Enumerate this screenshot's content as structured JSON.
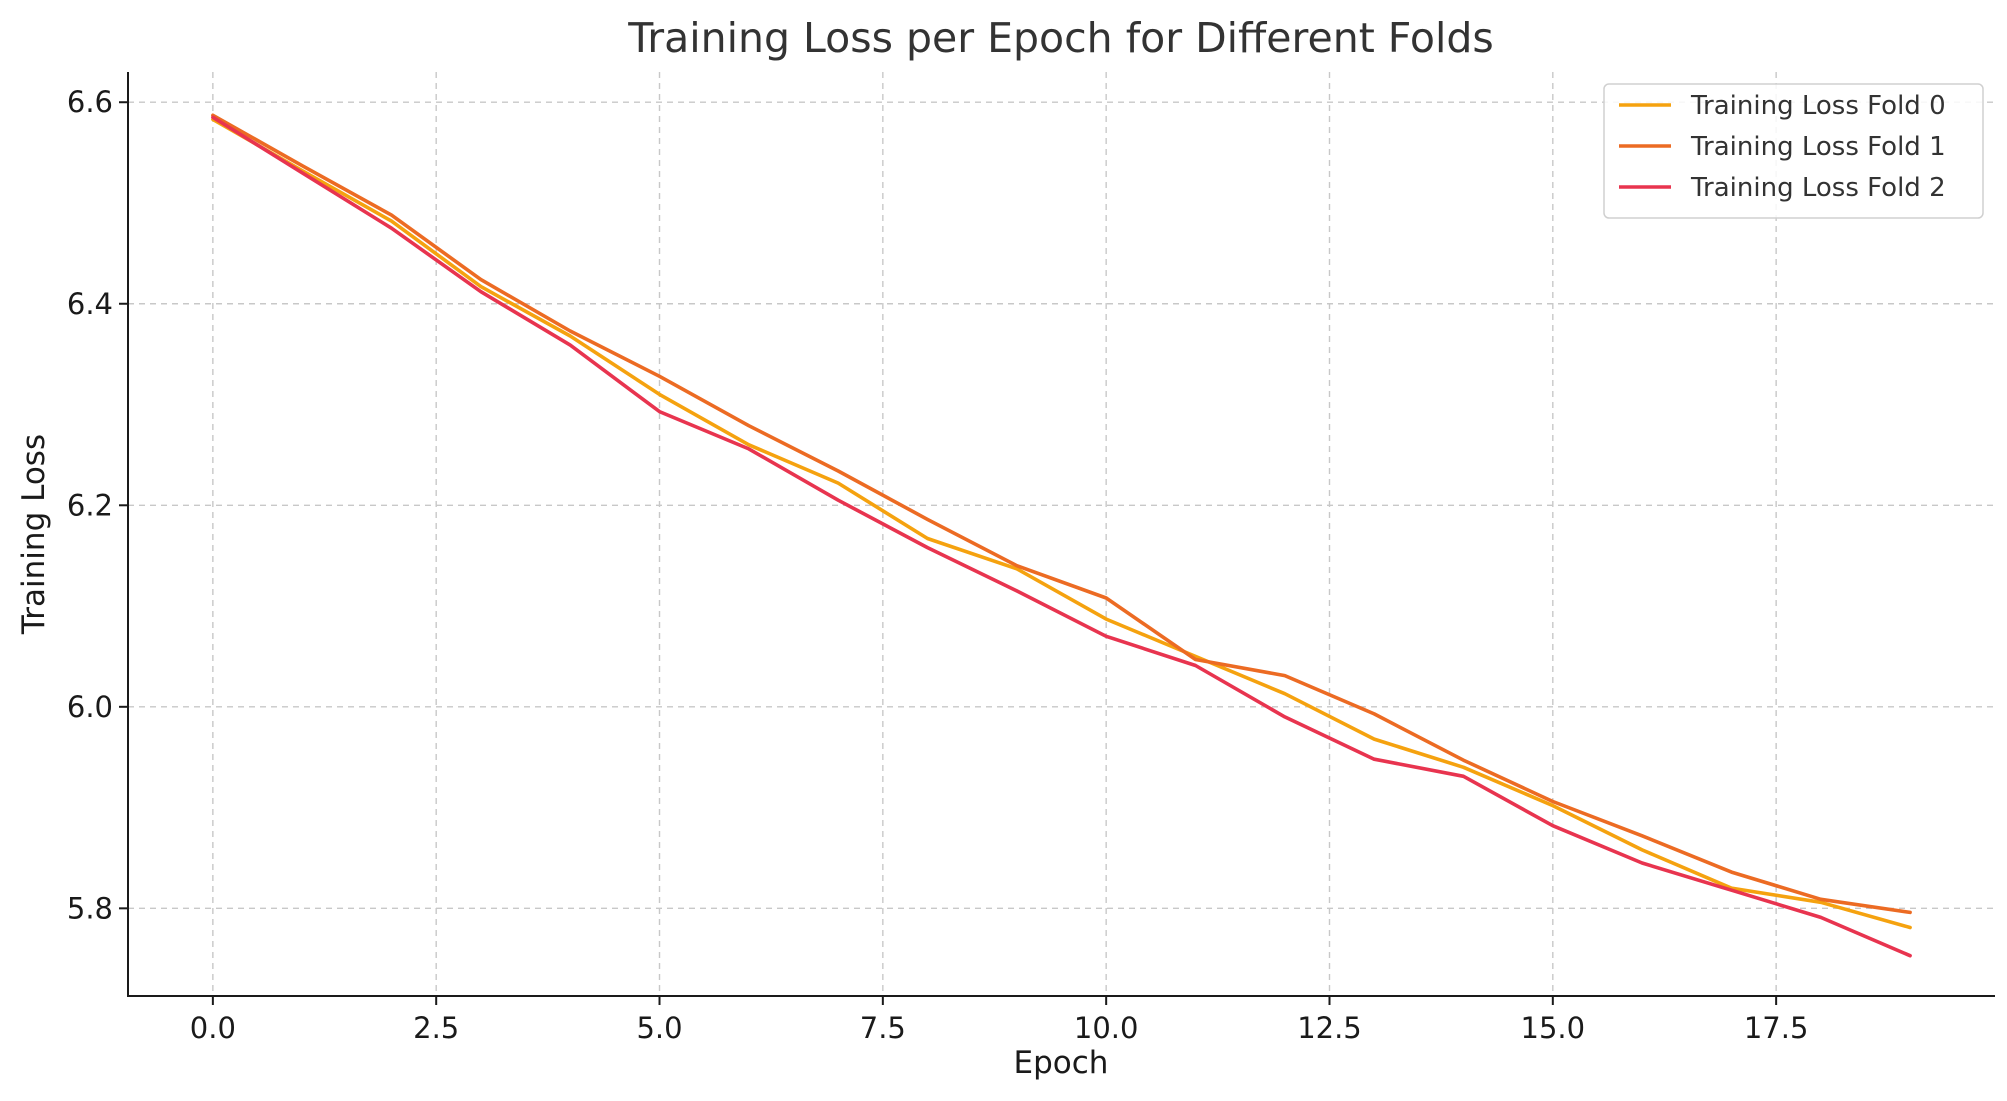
{
  "chart_data": {
    "type": "line",
    "title": "Training Loss per Epoch for Different Folds",
    "xlabel": "Epoch",
    "ylabel": "Training Loss",
    "xlim": [
      -0.95,
      19.95
    ],
    "ylim": [
      5.713,
      6.63
    ],
    "xticks": [
      0.0,
      2.5,
      5.0,
      7.5,
      10.0,
      12.5,
      15.0,
      17.5
    ],
    "xtick_labels": [
      "0.0",
      "2.5",
      "5.0",
      "7.5",
      "10.0",
      "12.5",
      "15.0",
      "17.5"
    ],
    "yticks": [
      5.8,
      6.0,
      6.2,
      6.4,
      6.6
    ],
    "ytick_labels": [
      "5.8",
      "6.0",
      "6.2",
      "6.4",
      "6.6"
    ],
    "grid": true,
    "legend_position": "top-right",
    "x": [
      0,
      1,
      2,
      3,
      4,
      5,
      6,
      7,
      8,
      9,
      10,
      11,
      12,
      13,
      14,
      15,
      16,
      17,
      18,
      19
    ],
    "series": [
      {
        "name": "Training Loss Fold 0",
        "color": "#f5a20f",
        "values": [
          6.583,
          6.532,
          6.482,
          6.417,
          6.368,
          6.31,
          6.26,
          6.222,
          6.167,
          6.137,
          6.087,
          6.05,
          6.013,
          5.968,
          5.94,
          5.902,
          5.858,
          5.82,
          5.806,
          5.781
        ]
      },
      {
        "name": "Training Loss Fold 1",
        "color": "#ec6b23",
        "values": [
          6.587,
          6.537,
          6.488,
          6.424,
          6.373,
          6.328,
          6.279,
          6.234,
          6.186,
          6.14,
          6.108,
          6.047,
          6.031,
          5.993,
          5.947,
          5.906,
          5.872,
          5.836,
          5.809,
          5.796
        ]
      },
      {
        "name": "Training Loss Fold 2",
        "color": "#e8344f",
        "values": [
          6.585,
          6.53,
          6.475,
          6.412,
          6.359,
          6.293,
          6.256,
          6.205,
          6.158,
          6.115,
          6.07,
          6.041,
          5.99,
          5.948,
          5.931,
          5.882,
          5.845,
          5.818,
          5.791,
          5.753
        ]
      }
    ]
  }
}
